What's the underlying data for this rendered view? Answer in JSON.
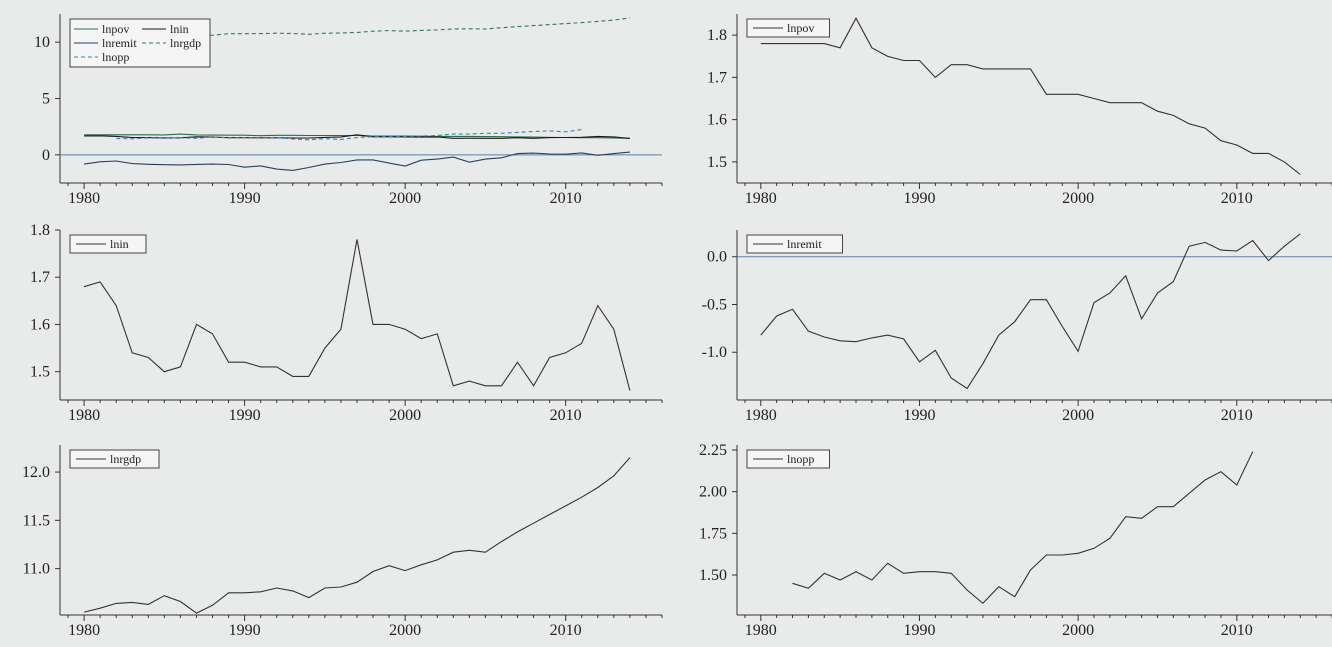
{
  "chart_data": [
    {
      "type": "line",
      "title": "",
      "xlim": [
        1978.5,
        2016
      ],
      "ylim": [
        -2.5,
        12.5
      ],
      "xticks": [
        1980,
        1990,
        2000,
        2010
      ],
      "yticks": [
        0,
        5,
        10
      ],
      "zero_line": true,
      "legend": "top-left",
      "series": [
        {
          "name": "lnpov",
          "dash": "solid",
          "color": "#2d6b4c",
          "x": [
            1980,
            1981,
            1982,
            1983,
            1984,
            1985,
            1986,
            1987,
            1988,
            1989,
            1990,
            1991,
            1992,
            1993,
            1994,
            1995,
            1996,
            1997,
            1998,
            1999,
            2000,
            2001,
            2002,
            2003,
            2004,
            2005,
            2006,
            2007,
            2008,
            2009,
            2010,
            2011,
            2012,
            2013,
            2014
          ],
          "y": [
            1.78,
            1.78,
            1.78,
            1.78,
            1.78,
            1.77,
            1.84,
            1.77,
            1.75,
            1.74,
            1.74,
            1.7,
            1.73,
            1.73,
            1.72,
            1.72,
            1.72,
            1.72,
            1.66,
            1.66,
            1.66,
            1.65,
            1.64,
            1.64,
            1.64,
            1.62,
            1.61,
            1.59,
            1.58,
            1.55,
            1.54,
            1.52,
            1.52,
            1.5,
            1.47
          ]
        },
        {
          "name": "lnin",
          "dash": "solid",
          "color": "#1a1a1a",
          "x": [
            1980,
            1981,
            1982,
            1983,
            1984,
            1985,
            1986,
            1987,
            1988,
            1989,
            1990,
            1991,
            1992,
            1993,
            1994,
            1995,
            1996,
            1997,
            1998,
            1999,
            2000,
            2001,
            2002,
            2003,
            2004,
            2005,
            2006,
            2007,
            2008,
            2009,
            2010,
            2011,
            2012,
            2013,
            2014
          ],
          "y": [
            1.68,
            1.69,
            1.64,
            1.54,
            1.53,
            1.5,
            1.51,
            1.6,
            1.58,
            1.52,
            1.52,
            1.51,
            1.51,
            1.49,
            1.49,
            1.55,
            1.59,
            1.78,
            1.6,
            1.6,
            1.59,
            1.57,
            1.58,
            1.47,
            1.48,
            1.47,
            1.47,
            1.52,
            1.47,
            1.53,
            1.54,
            1.56,
            1.64,
            1.59,
            1.46
          ]
        },
        {
          "name": "lnremit",
          "dash": "solid",
          "color": "#2a3f5f",
          "x": [
            1980,
            1981,
            1982,
            1983,
            1984,
            1985,
            1986,
            1987,
            1988,
            1989,
            1990,
            1991,
            1992,
            1993,
            1994,
            1995,
            1996,
            1997,
            1998,
            1999,
            2000,
            2001,
            2002,
            2003,
            2004,
            2005,
            2006,
            2007,
            2008,
            2009,
            2010,
            2011,
            2012,
            2013,
            2014
          ],
          "y": [
            -0.82,
            -0.62,
            -0.55,
            -0.78,
            -0.84,
            -0.88,
            -0.89,
            -0.85,
            -0.82,
            -0.86,
            -1.1,
            -0.98,
            -1.27,
            -1.38,
            -1.12,
            -0.82,
            -0.68,
            -0.45,
            -0.45,
            -0.73,
            -0.99,
            -0.48,
            -0.38,
            -0.2,
            -0.65,
            -0.38,
            -0.26,
            0.11,
            0.15,
            0.07,
            0.06,
            0.17,
            -0.04,
            0.11,
            0.24
          ]
        },
        {
          "name": "lnrgdp",
          "dash": "dash",
          "color": "#2e7a66",
          "x": [
            1980,
            1981,
            1982,
            1983,
            1984,
            1985,
            1986,
            1987,
            1988,
            1989,
            1990,
            1991,
            1992,
            1993,
            1994,
            1995,
            1996,
            1997,
            1998,
            1999,
            2000,
            2001,
            2002,
            2003,
            2004,
            2005,
            2006,
            2007,
            2008,
            2009,
            2010,
            2011,
            2012,
            2013,
            2014
          ],
          "y": [
            10.55,
            10.59,
            10.64,
            10.65,
            10.63,
            10.72,
            10.66,
            10.54,
            10.62,
            10.75,
            10.75,
            10.76,
            10.8,
            10.77,
            10.7,
            10.8,
            10.81,
            10.86,
            10.97,
            11.03,
            10.98,
            11.04,
            11.09,
            11.17,
            11.19,
            11.17,
            11.28,
            11.38,
            11.47,
            11.56,
            11.65,
            11.74,
            11.84,
            11.96,
            12.15
          ]
        },
        {
          "name": "lnopp",
          "dash": "dash",
          "color": "#3b7fb8",
          "x": [
            1982,
            1983,
            1984,
            1985,
            1986,
            1987,
            1988,
            1989,
            1990,
            1991,
            1992,
            1993,
            1994,
            1995,
            1996,
            1997,
            1998,
            1999,
            2000,
            2001,
            2002,
            2003,
            2004,
            2005,
            2006,
            2007,
            2008,
            2009,
            2010,
            2011
          ],
          "y": [
            1.45,
            1.42,
            1.51,
            1.47,
            1.52,
            1.47,
            1.57,
            1.51,
            1.52,
            1.52,
            1.51,
            1.41,
            1.33,
            1.43,
            1.37,
            1.53,
            1.62,
            1.62,
            1.63,
            1.66,
            1.72,
            1.85,
            1.84,
            1.91,
            1.91,
            1.99,
            2.07,
            2.12,
            2.04,
            2.24
          ]
        }
      ]
    },
    {
      "type": "line",
      "title": "",
      "xlim": [
        1978.5,
        2016
      ],
      "ylim": [
        1.45,
        1.85
      ],
      "xticks": [
        1980,
        1990,
        2000,
        2010
      ],
      "yticks": [
        1.5,
        1.6,
        1.7,
        1.8
      ],
      "ytick_labels": [
        "1.5",
        "1.6",
        "1.7",
        "1.8"
      ],
      "legend": "top-left",
      "series": [
        {
          "name": "lnpov",
          "dash": "solid",
          "color": "#333333",
          "x": [
            1980,
            1981,
            1982,
            1983,
            1984,
            1985,
            1986,
            1987,
            1988,
            1989,
            1990,
            1991,
            1992,
            1993,
            1994,
            1995,
            1996,
            1997,
            1998,
            1999,
            2000,
            2001,
            2002,
            2003,
            2004,
            2005,
            2006,
            2007,
            2008,
            2009,
            2010,
            2011,
            2012,
            2013,
            2014
          ],
          "y": [
            1.78,
            1.78,
            1.78,
            1.78,
            1.78,
            1.77,
            1.84,
            1.77,
            1.75,
            1.74,
            1.74,
            1.7,
            1.73,
            1.73,
            1.72,
            1.72,
            1.72,
            1.72,
            1.66,
            1.66,
            1.66,
            1.65,
            1.64,
            1.64,
            1.64,
            1.62,
            1.61,
            1.59,
            1.58,
            1.55,
            1.54,
            1.52,
            1.52,
            1.5,
            1.47
          ]
        }
      ]
    },
    {
      "type": "line",
      "title": "",
      "xlim": [
        1978.5,
        2016
      ],
      "ylim": [
        1.44,
        1.8
      ],
      "xticks": [
        1980,
        1990,
        2000,
        2010
      ],
      "yticks": [
        1.5,
        1.6,
        1.7,
        1.8
      ],
      "ytick_labels": [
        "1.5",
        "1.6",
        "1.7",
        "1.8"
      ],
      "legend": "top-left",
      "series": [
        {
          "name": "lnin",
          "dash": "solid",
          "color": "#333333",
          "x": [
            1980,
            1981,
            1982,
            1983,
            1984,
            1985,
            1986,
            1987,
            1988,
            1989,
            1990,
            1991,
            1992,
            1993,
            1994,
            1995,
            1996,
            1997,
            1998,
            1999,
            2000,
            2001,
            2002,
            2003,
            2004,
            2005,
            2006,
            2007,
            2008,
            2009,
            2010,
            2011,
            2012,
            2013,
            2014
          ],
          "y": [
            1.68,
            1.69,
            1.64,
            1.54,
            1.53,
            1.5,
            1.51,
            1.6,
            1.58,
            1.52,
            1.52,
            1.51,
            1.51,
            1.49,
            1.49,
            1.55,
            1.59,
            1.78,
            1.6,
            1.6,
            1.59,
            1.57,
            1.58,
            1.47,
            1.48,
            1.47,
            1.47,
            1.52,
            1.47,
            1.53,
            1.54,
            1.56,
            1.64,
            1.59,
            1.46
          ]
        }
      ]
    },
    {
      "type": "line",
      "title": "",
      "xlim": [
        1978.5,
        2016
      ],
      "ylim": [
        -1.5,
        0.28
      ],
      "xticks": [
        1980,
        1990,
        2000,
        2010
      ],
      "yticks": [
        -1.0,
        -0.5,
        0.0
      ],
      "ytick_labels": [
        "-1.0",
        "-0.5",
        "0.0"
      ],
      "zero_line": true,
      "legend": "top-left",
      "series": [
        {
          "name": "lnremit",
          "dash": "solid",
          "color": "#333333",
          "x": [
            1980,
            1981,
            1982,
            1983,
            1984,
            1985,
            1986,
            1987,
            1988,
            1989,
            1990,
            1991,
            1992,
            1993,
            1994,
            1995,
            1996,
            1997,
            1998,
            1999,
            2000,
            2001,
            2002,
            2003,
            2004,
            2005,
            2006,
            2007,
            2008,
            2009,
            2010,
            2011,
            2012,
            2013,
            2014
          ],
          "y": [
            -0.82,
            -0.62,
            -0.55,
            -0.78,
            -0.84,
            -0.88,
            -0.89,
            -0.85,
            -0.82,
            -0.86,
            -1.1,
            -0.98,
            -1.27,
            -1.38,
            -1.12,
            -0.82,
            -0.68,
            -0.45,
            -0.45,
            -0.73,
            -0.99,
            -0.48,
            -0.38,
            -0.2,
            -0.65,
            -0.38,
            -0.26,
            0.11,
            0.15,
            0.07,
            0.06,
            0.17,
            -0.04,
            0.11,
            0.24
          ]
        }
      ]
    },
    {
      "type": "line",
      "title": "",
      "xlim": [
        1978.5,
        2016
      ],
      "ylim": [
        10.52,
        12.28
      ],
      "xticks": [
        1980,
        1990,
        2000,
        2010
      ],
      "yticks": [
        11.0,
        11.5,
        12.0
      ],
      "ytick_labels": [
        "11.0",
        "11.5",
        "12.0"
      ],
      "legend": "top-left",
      "series": [
        {
          "name": "lnrgdp",
          "dash": "solid",
          "color": "#333333",
          "x": [
            1980,
            1981,
            1982,
            1983,
            1984,
            1985,
            1986,
            1987,
            1988,
            1989,
            1990,
            1991,
            1992,
            1993,
            1994,
            1995,
            1996,
            1997,
            1998,
            1999,
            2000,
            2001,
            2002,
            2003,
            2004,
            2005,
            2006,
            2007,
            2008,
            2009,
            2010,
            2011,
            2012,
            2013,
            2014
          ],
          "y": [
            10.55,
            10.59,
            10.64,
            10.65,
            10.63,
            10.72,
            10.66,
            10.54,
            10.62,
            10.75,
            10.75,
            10.76,
            10.8,
            10.77,
            10.7,
            10.8,
            10.81,
            10.86,
            10.97,
            11.03,
            10.98,
            11.04,
            11.09,
            11.17,
            11.19,
            11.17,
            11.28,
            11.38,
            11.47,
            11.56,
            11.65,
            11.74,
            11.84,
            11.96,
            12.15
          ]
        }
      ]
    },
    {
      "type": "line",
      "title": "",
      "xlim": [
        1978.5,
        2016
      ],
      "ylim": [
        1.26,
        2.28
      ],
      "xticks": [
        1980,
        1990,
        2000,
        2010
      ],
      "yticks": [
        1.5,
        1.75,
        2.0,
        2.25
      ],
      "ytick_labels": [
        "1.50",
        "1.75",
        "2.00",
        "2.25"
      ],
      "legend": "top-left",
      "series": [
        {
          "name": "lnopp",
          "dash": "solid",
          "color": "#333333",
          "x": [
            1982,
            1983,
            1984,
            1985,
            1986,
            1987,
            1988,
            1989,
            1990,
            1991,
            1992,
            1993,
            1994,
            1995,
            1996,
            1997,
            1998,
            1999,
            2000,
            2001,
            2002,
            2003,
            2004,
            2005,
            2006,
            2007,
            2008,
            2009,
            2010,
            2011
          ],
          "y": [
            1.45,
            1.42,
            1.51,
            1.47,
            1.52,
            1.47,
            1.57,
            1.51,
            1.52,
            1.52,
            1.51,
            1.41,
            1.33,
            1.43,
            1.37,
            1.53,
            1.62,
            1.62,
            1.63,
            1.66,
            1.72,
            1.85,
            1.84,
            1.91,
            1.91,
            1.99,
            2.07,
            2.12,
            2.04,
            2.24
          ]
        }
      ]
    }
  ]
}
